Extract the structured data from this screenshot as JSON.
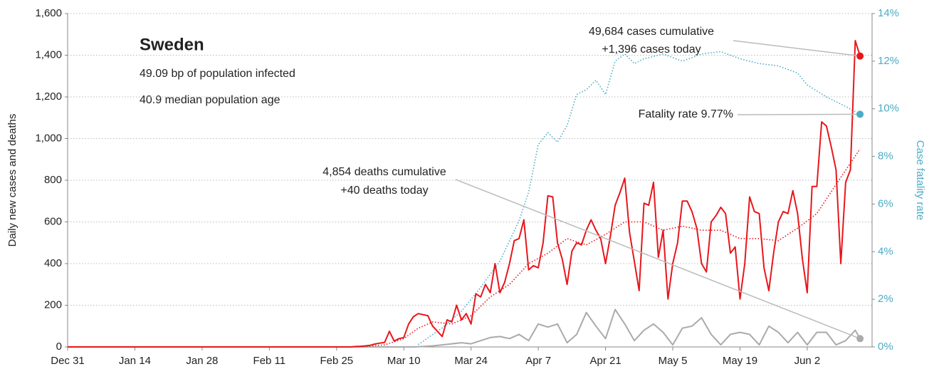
{
  "chart_data": {
    "type": "line",
    "title": "Sweden",
    "subtitle": [
      "49.09 bp of population infected",
      "40.9 median population age"
    ],
    "ylabel": "Daily new cases and deaths",
    "y2label": "Case fatality rate",
    "xlim": [
      0,
      167.5
    ],
    "xticks": [
      {
        "value": 0,
        "label": "Dec 31"
      },
      {
        "value": 14,
        "label": "Jan 14"
      },
      {
        "value": 28,
        "label": "Jan 28"
      },
      {
        "value": 42,
        "label": "Feb 11"
      },
      {
        "value": 56,
        "label": "Feb 25"
      },
      {
        "value": 70,
        "label": "Mar 10"
      },
      {
        "value": 84,
        "label": "Mar 24"
      },
      {
        "value": 98,
        "label": "Apr 7"
      },
      {
        "value": 112,
        "label": "Apr 21"
      },
      {
        "value": 126,
        "label": "May 5"
      },
      {
        "value": 140,
        "label": "May 19"
      },
      {
        "value": 154,
        "label": "Jun 2"
      }
    ],
    "ylim": [
      0,
      1600
    ],
    "yticks": [
      0,
      200,
      400,
      600,
      800,
      {
        "value": 1000,
        "label": "1,000"
      },
      {
        "value": 1200,
        "label": "1,200"
      },
      {
        "value": 1400,
        "label": "1,400"
      },
      {
        "value": 1600,
        "label": "1,600"
      }
    ],
    "y2lim": [
      0,
      14
    ],
    "y2ticks": [
      {
        "value": 0,
        "label": "0%"
      },
      {
        "value": 2,
        "label": "2%"
      },
      {
        "value": 4,
        "label": "4%"
      },
      {
        "value": 6,
        "label": "6%"
      },
      {
        "value": 8,
        "label": "8%"
      },
      {
        "value": 10,
        "label": "10%"
      },
      {
        "value": 12,
        "label": "12%"
      },
      {
        "value": 14,
        "label": "14%"
      }
    ],
    "grid": true,
    "series": [
      {
        "name": "Daily new cases",
        "color": "#e8161b",
        "style": "solid",
        "x": [
          0,
          58,
          59,
          60,
          61,
          62,
          63,
          64,
          65,
          66,
          67,
          68,
          69,
          70,
          71,
          72,
          73,
          74,
          75,
          76,
          77,
          78,
          79,
          80,
          81,
          82,
          83,
          84,
          85,
          86,
          87,
          88,
          89,
          90,
          91,
          92,
          93,
          94,
          95,
          96,
          97,
          98,
          99,
          100,
          101,
          102,
          103,
          104,
          105,
          106,
          107,
          108,
          109,
          110,
          111,
          112,
          113,
          114,
          115,
          116,
          117,
          118,
          119,
          120,
          121,
          122,
          123,
          124,
          125,
          126,
          127,
          128,
          129,
          130,
          131,
          132,
          133,
          134,
          135,
          136,
          137,
          138,
          139,
          140,
          141,
          142,
          143,
          144,
          145,
          146,
          147,
          148,
          149,
          150,
          151,
          152,
          153,
          154,
          155,
          156,
          157,
          158,
          159,
          160,
          161,
          162,
          163,
          164,
          165
        ],
        "values": [
          0,
          0,
          0,
          2,
          3,
          5,
          8,
          14,
          18,
          22,
          75,
          28,
          40,
          45,
          110,
          145,
          160,
          155,
          150,
          100,
          75,
          50,
          130,
          120,
          200,
          130,
          160,
          110,
          255,
          240,
          300,
          260,
          400,
          260,
          310,
          400,
          510,
          520,
          610,
          370,
          390,
          380,
          500,
          725,
          720,
          500,
          420,
          300,
          460,
          500,
          490,
          560,
          610,
          560,
          520,
          400,
          530,
          680,
          740,
          810,
          550,
          410,
          270,
          690,
          680,
          790,
          430,
          560,
          230,
          400,
          500,
          700,
          700,
          650,
          570,
          400,
          360,
          600,
          630,
          670,
          640,
          450,
          480,
          230,
          400,
          720,
          650,
          640,
          380,
          270,
          450,
          600,
          650,
          640,
          750,
          640,
          420,
          260,
          770,
          770,
          1080,
          1060,
          960,
          850,
          400,
          790,
          850,
          1470,
          1396
        ]
      },
      {
        "name": "7-day average cases",
        "color": "#e8161b",
        "style": "dotted",
        "x": [
          0,
          58,
          62,
          66,
          70,
          73,
          76,
          80,
          84,
          88,
          92,
          96,
          100,
          104,
          108,
          112,
          116,
          120,
          124,
          128,
          132,
          136,
          140,
          144,
          148,
          152,
          156,
          160,
          165
        ],
        "values": [
          0,
          0,
          3,
          10,
          40,
          90,
          120,
          110,
          150,
          240,
          300,
          400,
          450,
          520,
          490,
          540,
          600,
          600,
          560,
          580,
          560,
          560,
          520,
          520,
          510,
          570,
          640,
          780,
          950
        ]
      },
      {
        "name": "Daily deaths",
        "color": "#aaaaaa",
        "style": "solid",
        "x": [
          0,
          72,
          74,
          76,
          78,
          80,
          82,
          84,
          86,
          88,
          90,
          92,
          94,
          96,
          98,
          100,
          102,
          104,
          106,
          108,
          110,
          112,
          114,
          116,
          118,
          120,
          122,
          124,
          126,
          128,
          130,
          132,
          134,
          136,
          138,
          140,
          142,
          144,
          146,
          148,
          150,
          152,
          154,
          156,
          158,
          160,
          162,
          164,
          165
        ],
        "values": [
          0,
          0,
          2,
          5,
          10,
          15,
          20,
          15,
          30,
          45,
          50,
          40,
          60,
          30,
          110,
          95,
          110,
          20,
          60,
          165,
          100,
          40,
          180,
          110,
          30,
          80,
          110,
          70,
          10,
          90,
          100,
          140,
          60,
          10,
          60,
          70,
          60,
          10,
          100,
          70,
          20,
          70,
          10,
          70,
          70,
          10,
          30,
          80,
          40
        ]
      },
      {
        "name": "Case fatality rate",
        "color": "#4bacc6",
        "style": "dotted",
        "axis": "y2",
        "x": [
          73,
          78,
          82,
          86,
          90,
          94,
          96,
          98,
          100,
          102,
          104,
          106,
          108,
          110,
          112,
          114,
          116,
          118,
          120,
          124,
          128,
          132,
          136,
          140,
          144,
          148,
          152,
          154,
          158,
          162,
          165
        ],
        "values": [
          0.1,
          0.8,
          1.5,
          2.5,
          3.6,
          5.3,
          6.5,
          8.5,
          9.0,
          8.6,
          9.3,
          10.6,
          10.8,
          11.2,
          10.6,
          12.0,
          12.3,
          11.9,
          12.1,
          12.3,
          12.0,
          12.3,
          12.4,
          12.1,
          11.9,
          11.8,
          11.5,
          11.0,
          10.5,
          10.1,
          9.77
        ]
      }
    ],
    "annotations": [
      {
        "series": 0,
        "text": [
          "49,684 cases cumulative",
          "+1,396 cases today"
        ]
      },
      {
        "series": 3,
        "text": [
          "Fatality rate 9.77%"
        ]
      },
      {
        "series": 2,
        "text": [
          "4,854 deaths cumulative",
          "+40 deaths today"
        ]
      }
    ]
  }
}
